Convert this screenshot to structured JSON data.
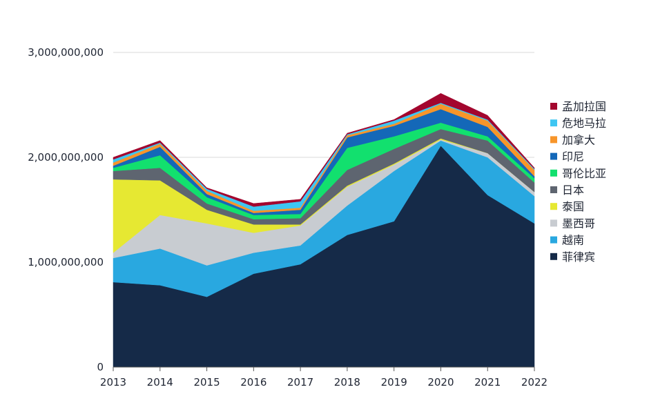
{
  "chart_data": {
    "type": "area",
    "stacked": true,
    "title": "",
    "xlabel": "",
    "ylabel": "",
    "x": [
      "2013",
      "2014",
      "2015",
      "2016",
      "2017",
      "2018",
      "2019",
      "2020",
      "2021",
      "2022"
    ],
    "ylim": [
      0,
      3000000000
    ],
    "yticks": [
      0,
      1000000000,
      2000000000,
      3000000000
    ],
    "ytick_labels": [
      "0",
      "1,000,000,000",
      "2,000,000,000",
      "3,000,000,000"
    ],
    "grid": true,
    "legend_position": "right",
    "series": [
      {
        "name": "菲律宾",
        "color": "#152a48",
        "values": [
          810000000,
          780000000,
          670000000,
          890000000,
          980000000,
          1260000000,
          1390000000,
          2110000000,
          1640000000,
          1370000000
        ]
      },
      {
        "name": "越南",
        "color": "#29a8e0",
        "values": [
          230000000,
          350000000,
          300000000,
          200000000,
          180000000,
          280000000,
          480000000,
          50000000,
          360000000,
          260000000
        ]
      },
      {
        "name": "墨西哥",
        "color": "#c8ccd1",
        "values": [
          50000000,
          320000000,
          400000000,
          190000000,
          190000000,
          180000000,
          60000000,
          10000000,
          40000000,
          40000000
        ]
      },
      {
        "name": "泰国",
        "color": "#e6e832",
        "values": [
          700000000,
          330000000,
          130000000,
          80000000,
          10000000,
          10000000,
          10000000,
          10000000,
          0,
          0
        ]
      },
      {
        "name": "日本",
        "color": "#5e6570",
        "values": [
          80000000,
          120000000,
          60000000,
          50000000,
          60000000,
          150000000,
          140000000,
          90000000,
          120000000,
          90000000
        ]
      },
      {
        "name": "哥伦比亚",
        "color": "#12e06e",
        "values": [
          30000000,
          120000000,
          60000000,
          40000000,
          40000000,
          210000000,
          120000000,
          60000000,
          40000000,
          40000000
        ]
      },
      {
        "name": "印尼",
        "color": "#1468b8",
        "values": [
          20000000,
          80000000,
          30000000,
          20000000,
          40000000,
          100000000,
          100000000,
          130000000,
          90000000,
          20000000
        ]
      },
      {
        "name": "加拿大",
        "color": "#f7952a",
        "values": [
          30000000,
          30000000,
          30000000,
          20000000,
          20000000,
          20000000,
          20000000,
          50000000,
          60000000,
          60000000
        ]
      },
      {
        "name": "危地马拉",
        "color": "#3ec6f2",
        "values": [
          30000000,
          10000000,
          20000000,
          40000000,
          60000000,
          10000000,
          30000000,
          10000000,
          10000000,
          10000000
        ]
      },
      {
        "name": "孟加拉国",
        "color": "#a3062e",
        "values": [
          20000000,
          20000000,
          10000000,
          30000000,
          20000000,
          10000000,
          10000000,
          90000000,
          40000000,
          10000000
        ]
      }
    ]
  }
}
